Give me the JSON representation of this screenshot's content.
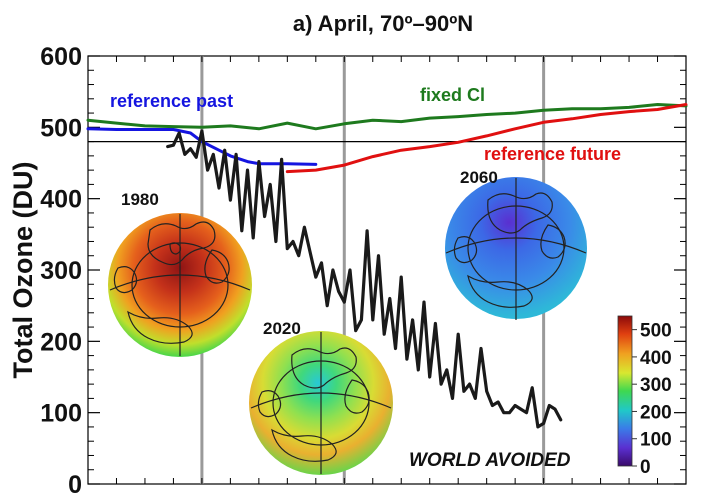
{
  "chart_data": {
    "type": "line",
    "title": "a) April, 70º–90ºN",
    "ylabel": "Total Ozone (DU)",
    "ylim": [
      0,
      600
    ],
    "xlim": [
      1960,
      2065
    ],
    "yticks": [
      0,
      100,
      200,
      300,
      400,
      500,
      600
    ],
    "reference_line": 480,
    "vertical_markers": [
      1980,
      2005,
      2040
    ],
    "series": [
      {
        "name": "reference past",
        "color": "#1515e0",
        "x": [
          1960,
          1965,
          1970,
          1975,
          1978,
          1980,
          1983,
          1985,
          1988,
          1990,
          1995,
          2000
        ],
        "y": [
          498,
          497,
          497,
          497,
          492,
          480,
          468,
          460,
          452,
          449,
          449,
          448
        ]
      },
      {
        "name": "fixed Cl",
        "color": "#1e7a1e",
        "x": [
          1960,
          1965,
          1970,
          1975,
          1980,
          1985,
          1990,
          1995,
          2000,
          2005,
          2010,
          2015,
          2020,
          2025,
          2030,
          2035,
          2040,
          2045,
          2050,
          2055,
          2060,
          2065
        ],
        "y": [
          510,
          506,
          502,
          501,
          500,
          502,
          498,
          506,
          498,
          505,
          510,
          508,
          513,
          515,
          518,
          520,
          524,
          526,
          526,
          528,
          532,
          530
        ]
      },
      {
        "name": "reference future",
        "color": "#e01010",
        "x": [
          1995,
          2000,
          2005,
          2010,
          2015,
          2020,
          2025,
          2030,
          2035,
          2040,
          2045,
          2050,
          2055,
          2060,
          2065
        ],
        "y": [
          438,
          440,
          447,
          459,
          468,
          473,
          479,
          488,
          498,
          507,
          512,
          518,
          522,
          525,
          532
        ]
      },
      {
        "name": "",
        "color": "#1a1a1a",
        "x": [
          1974,
          1975,
          1976,
          1977,
          1978,
          1979,
          1980,
          1981,
          1982,
          1983,
          1984,
          1985,
          1986,
          1987,
          1988,
          1989,
          1990,
          1991,
          1992,
          1993,
          1994,
          1995,
          1996,
          1997,
          1998,
          1999,
          2000,
          2001,
          2002,
          2003,
          2004,
          2005,
          2006,
          2007,
          2008,
          2009,
          2010,
          2011,
          2012,
          2013,
          2014,
          2015,
          2016,
          2017,
          2018,
          2019,
          2020,
          2021,
          2022,
          2023,
          2024,
          2025,
          2026,
          2027,
          2028,
          2029,
          2030,
          2031,
          2032,
          2033,
          2034,
          2035,
          2036,
          2037,
          2038,
          2039,
          2040,
          2041,
          2042,
          2043
        ],
        "y": [
          473,
          475,
          492,
          462,
          470,
          458,
          495,
          440,
          462,
          415,
          468,
          398,
          462,
          355,
          440,
          345,
          452,
          375,
          420,
          340,
          455,
          330,
          340,
          320,
          360,
          325,
          290,
          310,
          250,
          300,
          270,
          255,
          300,
          215,
          230,
          355,
          230,
          320,
          210,
          260,
          190,
          290,
          175,
          230,
          160,
          255,
          150,
          225,
          140,
          160,
          120,
          210,
          130,
          140,
          120,
          190,
          130,
          110,
          115,
          100,
          100,
          110,
          105,
          100,
          135,
          80,
          85,
          110,
          105,
          90
        ]
      }
    ],
    "insets": [
      {
        "label": "1980",
        "map": "north-polar-ozone-map"
      },
      {
        "label": "2020",
        "map": "north-polar-ozone-map"
      },
      {
        "label": "2060",
        "map": "north-polar-ozone-map"
      }
    ],
    "annotation": "WORLD AVOIDED",
    "colorbar": {
      "ticks": [
        0,
        100,
        200,
        300,
        400,
        500
      ],
      "colors": [
        "#3a0a6b",
        "#5a2fd0",
        "#3a7ce8",
        "#20c8c8",
        "#3fd850",
        "#d8e830",
        "#f0a020",
        "#e04010",
        "#8b0a0a"
      ]
    }
  }
}
